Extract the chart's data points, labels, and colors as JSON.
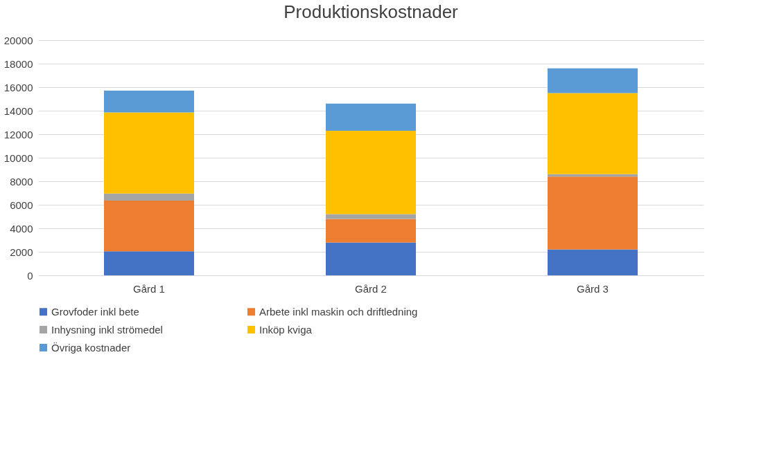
{
  "chart_data": {
    "type": "bar",
    "title": "Produktionskostnader",
    "stacked": true,
    "categories": [
      "Gård 1",
      "Gård 2",
      "Gård 3"
    ],
    "series": [
      {
        "name": "Grovfoder inkl bete",
        "color": "#4472c4",
        "values": [
          2050,
          2800,
          2200
        ]
      },
      {
        "name": "Arbete inkl maskin och driftledning",
        "color": "#ed7d31",
        "values": [
          4300,
          2000,
          6200
        ]
      },
      {
        "name": "Inhysning inkl strömedel",
        "color": "#a5a5a5",
        "values": [
          600,
          400,
          200
        ]
      },
      {
        "name": "Inköp kviga",
        "color": "#ffc000",
        "values": [
          6900,
          7100,
          6900
        ]
      },
      {
        "name": "Övriga kostnader",
        "color": "#5b9bd5",
        "values": [
          1850,
          2300,
          2100
        ]
      }
    ],
    "ylim": [
      0,
      20000
    ],
    "yticks": [
      0,
      2000,
      4000,
      6000,
      8000,
      10000,
      12000,
      14000,
      16000,
      18000,
      20000
    ],
    "grid": "y",
    "legend": "bottom"
  }
}
